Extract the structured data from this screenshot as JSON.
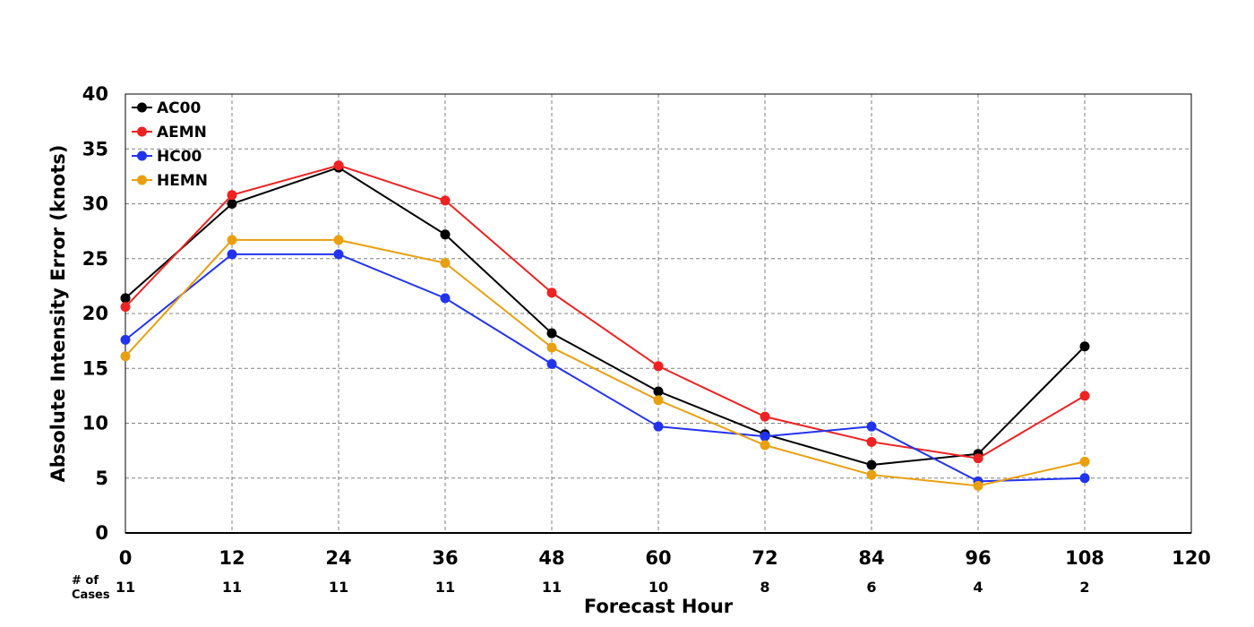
{
  "chart_data": {
    "type": "line",
    "title": "",
    "xlabel": "Forecast Hour",
    "ylabel": "Absolute Intensity Error (knots)",
    "xlim": [
      0,
      120
    ],
    "ylim": [
      0,
      40
    ],
    "x_ticks": [
      0,
      12,
      24,
      36,
      48,
      60,
      72,
      84,
      96,
      108,
      120
    ],
    "y_ticks": [
      0,
      5,
      10,
      15,
      20,
      25,
      30,
      35,
      40
    ],
    "grid": true,
    "legend_position": "top-left",
    "cases_label": [
      "# of",
      "Cases"
    ],
    "cases": [
      {
        "x": 0,
        "n": "11"
      },
      {
        "x": 12,
        "n": "11"
      },
      {
        "x": 24,
        "n": "11"
      },
      {
        "x": 36,
        "n": "11"
      },
      {
        "x": 48,
        "n": "11"
      },
      {
        "x": 60,
        "n": "10"
      },
      {
        "x": 72,
        "n": "8"
      },
      {
        "x": 84,
        "n": "6"
      },
      {
        "x": 96,
        "n": "4"
      },
      {
        "x": 108,
        "n": "2"
      }
    ],
    "x": [
      0,
      12,
      24,
      36,
      48,
      60,
      72,
      84,
      96,
      108
    ],
    "series": [
      {
        "name": "AC00",
        "color": "#000000",
        "values": [
          21.4,
          30.0,
          33.3,
          27.2,
          18.2,
          12.9,
          9.0,
          6.2,
          7.2,
          17.0
        ]
      },
      {
        "name": "AEMN",
        "color": "#ee2222",
        "values": [
          20.6,
          30.8,
          33.5,
          30.3,
          21.9,
          15.2,
          10.6,
          8.3,
          6.8,
          12.5
        ]
      },
      {
        "name": "HC00",
        "color": "#2233ee",
        "values": [
          17.6,
          25.4,
          25.4,
          21.4,
          15.4,
          9.7,
          8.8,
          9.7,
          4.7,
          5.0
        ]
      },
      {
        "name": "HEMN",
        "color": "#e8a010",
        "values": [
          16.1,
          26.7,
          26.7,
          24.6,
          16.9,
          12.1,
          8.0,
          5.3,
          4.3,
          6.5
        ]
      }
    ]
  }
}
